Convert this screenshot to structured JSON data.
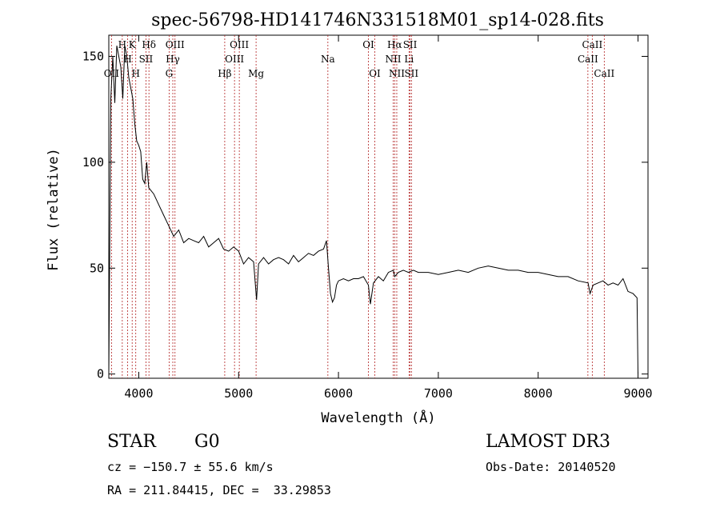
{
  "chart_data": {
    "type": "line",
    "title": "spec-56798-HD141746N331518M01_sp14-028.fits",
    "xlabel": "Wavelength (Å)",
    "ylabel": "Flux (relative)",
    "xlim": [
      3700,
      9100
    ],
    "ylim": [
      -2,
      160
    ],
    "x_ticks": [
      4000,
      5000,
      6000,
      7000,
      8000,
      9000
    ],
    "y_ticks": [
      0,
      50,
      100,
      150
    ],
    "grid": false,
    "line_color": "#000000",
    "marker_color": "#b22222",
    "lines": [
      {
        "label": "OII",
        "x": 3727,
        "row": 2
      },
      {
        "label": "H",
        "x": 3835,
        "row": 0
      },
      {
        "label": "H",
        "x": 3889,
        "row": 1
      },
      {
        "label": "K",
        "x": 3934,
        "row": 0
      },
      {
        "label": "H",
        "x": 3970,
        "row": 2
      },
      {
        "label": "SII",
        "x": 4072,
        "row": 1
      },
      {
        "label": "Hδ",
        "x": 4102,
        "row": 0
      },
      {
        "label": "G",
        "x": 4304,
        "row": 2
      },
      {
        "label": "Hγ",
        "x": 4341,
        "row": 1
      },
      {
        "label": "OIII",
        "x": 4363,
        "row": 0
      },
      {
        "label": "Hβ",
        "x": 4861,
        "row": 2
      },
      {
        "label": "OIII",
        "x": 4959,
        "row": 1
      },
      {
        "label": "OIII",
        "x": 5007,
        "row": 0
      },
      {
        "label": "Mg",
        "x": 5175,
        "row": 2
      },
      {
        "label": "Na",
        "x": 5894,
        "row": 1
      },
      {
        "label": "OI",
        "x": 6300,
        "row": 0
      },
      {
        "label": "OI",
        "x": 6364,
        "row": 2
      },
      {
        "label": "NII",
        "x": 6548,
        "row": 1
      },
      {
        "label": "Hα",
        "x": 6563,
        "row": 0
      },
      {
        "label": "NII",
        "x": 6584,
        "row": 2
      },
      {
        "label": "Li",
        "x": 6707,
        "row": 1
      },
      {
        "label": "SII",
        "x": 6717,
        "row": 0
      },
      {
        "label": "SII",
        "x": 6731,
        "row": 2
      },
      {
        "label": "CaII",
        "x": 8498,
        "row": 1
      },
      {
        "label": "CaII",
        "x": 8542,
        "row": 0
      },
      {
        "label": "CaII",
        "x": 8662,
        "row": 2
      }
    ],
    "series": [
      {
        "x": [
          3700,
          3720,
          3740,
          3760,
          3780,
          3800,
          3820,
          3840,
          3860,
          3880,
          3900,
          3920,
          3940,
          3960,
          3980,
          4000,
          4020,
          4040,
          4060,
          4080,
          4100,
          4150,
          4200,
          4250,
          4300,
          4350,
          4400,
          4450,
          4500,
          4550,
          4600,
          4650,
          4700,
          4750,
          4800,
          4850,
          4900,
          4950,
          5000,
          5050,
          5100,
          5150,
          5180,
          5200,
          5250,
          5300,
          5350,
          5400,
          5450,
          5500,
          5550,
          5600,
          5650,
          5700,
          5750,
          5800,
          5850,
          5880,
          5900,
          5920,
          5940,
          5960,
          5980,
          6000,
          6050,
          6100,
          6150,
          6200,
          6250,
          6300,
          6320,
          6350,
          6400,
          6450,
          6500,
          6550,
          6563,
          6600,
          6650,
          6700,
          6750,
          6800,
          6900,
          7000,
          7100,
          7200,
          7300,
          7400,
          7500,
          7600,
          7700,
          7800,
          7900,
          8000,
          8100,
          8200,
          8300,
          8400,
          8500,
          8520,
          8550,
          8600,
          8650,
          8700,
          8750,
          8800,
          8850,
          8900,
          8950,
          8990,
          9000
        ],
        "y": [
          0,
          130,
          150,
          128,
          155,
          150,
          145,
          130,
          155,
          150,
          140,
          135,
          130,
          118,
          110,
          108,
          105,
          92,
          90,
          100,
          88,
          85,
          80,
          75,
          70,
          65,
          68,
          62,
          64,
          63,
          62,
          65,
          60,
          62,
          64,
          59,
          58,
          60,
          58,
          52,
          55,
          53,
          35,
          52,
          55,
          52,
          54,
          55,
          54,
          52,
          56,
          53,
          55,
          57,
          56,
          58,
          59,
          63,
          50,
          38,
          34,
          36,
          42,
          44,
          45,
          44,
          45,
          45,
          46,
          42,
          33,
          43,
          46,
          44,
          48,
          49,
          46,
          48,
          49,
          48,
          49,
          48,
          48,
          47,
          48,
          49,
          48,
          50,
          51,
          50,
          49,
          49,
          48,
          48,
          47,
          46,
          46,
          44,
          43,
          38,
          42,
          43,
          44,
          42,
          43,
          42,
          45,
          39,
          38,
          36,
          0
        ]
      }
    ]
  },
  "footer": {
    "object_class": "STAR",
    "subclass": "G0",
    "survey": "LAMOST DR3",
    "velocity": "cz = −150.7 ± 55.6 km/s",
    "obs_date": "Obs-Date: 20140520",
    "coords": "RA = 211.84415, DEC =  33.29853"
  }
}
